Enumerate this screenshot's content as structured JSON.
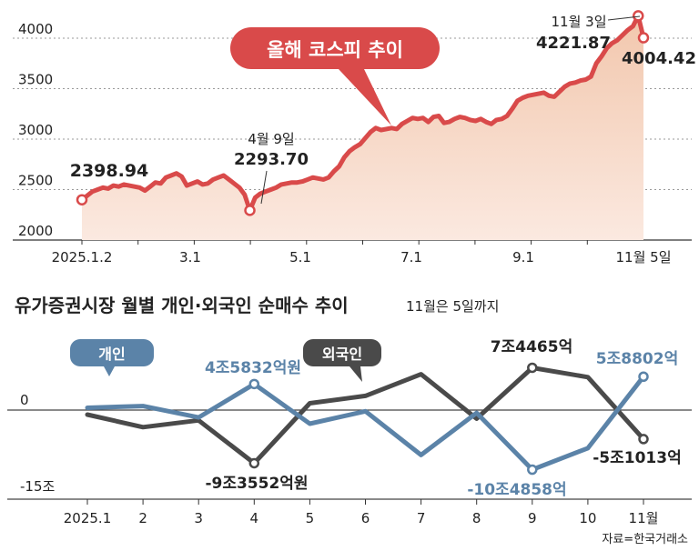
{
  "source": "자료=한국거래소",
  "colors": {
    "kospi_line": "#d94a4a",
    "kospi_fill_top": "#f2c7ad",
    "kospi_fill_bottom": "#fbe9e0",
    "individual": "#5b83a8",
    "foreign": "#4a4a4a",
    "grid": "#9a9a9a",
    "text": "#222222"
  },
  "chart_data": [
    {
      "type": "area",
      "title": "올해 코스피 추이",
      "ylim": [
        2000,
        4300
      ],
      "y_ticks": [
        "4000",
        "3500",
        "3000",
        "2500",
        "2000"
      ],
      "x_tick_labels": [
        "2025.1.2",
        "3.1",
        "5.1",
        "7.1",
        "9.1",
        "11월 5일"
      ],
      "series": [
        {
          "name": "코스피",
          "values": [
            2399,
            2440,
            2480,
            2500,
            2520,
            2510,
            2540,
            2530,
            2550,
            2540,
            2530,
            2520,
            2490,
            2530,
            2570,
            2560,
            2620,
            2640,
            2660,
            2630,
            2540,
            2560,
            2580,
            2550,
            2560,
            2600,
            2620,
            2640,
            2600,
            2560,
            2520,
            2450,
            2294,
            2420,
            2460,
            2480,
            2500,
            2520,
            2550,
            2560,
            2570,
            2570,
            2580,
            2600,
            2620,
            2610,
            2600,
            2620,
            2680,
            2730,
            2820,
            2880,
            2920,
            2950,
            3010,
            3070,
            3110,
            3090,
            3100,
            3110,
            3100,
            3150,
            3180,
            3210,
            3200,
            3210,
            3170,
            3220,
            3230,
            3160,
            3170,
            3200,
            3220,
            3210,
            3190,
            3180,
            3200,
            3170,
            3150,
            3190,
            3200,
            3230,
            3300,
            3380,
            3410,
            3430,
            3440,
            3450,
            3460,
            3430,
            3420,
            3470,
            3520,
            3550,
            3560,
            3580,
            3590,
            3620,
            3750,
            3820,
            3900,
            3950,
            3980,
            4030,
            4080,
            4120,
            4222,
            4004
          ]
        }
      ],
      "annotations": [
        {
          "label": "",
          "value": "2398.94"
        },
        {
          "label": "4월 9일",
          "value": "2293.70"
        },
        {
          "label": "11월 3일",
          "value": "4221.87"
        },
        {
          "label": "",
          "value": "4004.42"
        }
      ]
    },
    {
      "type": "line",
      "title": "유가증권시장 월별 개인·외국인 순매수 추이",
      "subtitle": "11월은 5일까지",
      "y_ticks": [
        "0",
        "-15조"
      ],
      "categories": [
        "2025.1",
        "2",
        "3",
        "4",
        "5",
        "6",
        "7",
        "8",
        "9",
        "10",
        "11월"
      ],
      "series": [
        {
          "name": "개인",
          "unit": "조원",
          "values": [
            0.4,
            0.7,
            -1.3,
            4.5832,
            -2.4,
            -0.2,
            -7.9,
            -0.5,
            -10.4858,
            -6.7,
            5.8802
          ]
        },
        {
          "name": "외국인",
          "unit": "조원",
          "values": [
            -0.8,
            -3.0,
            -1.8,
            -9.3552,
            1.2,
            2.5,
            6.3,
            -1.5,
            7.4465,
            5.8,
            -5.1013
          ]
        }
      ],
      "annotations": [
        "4조5832억원",
        "-9조3552억원",
        "7조4465억",
        "-10조4858억",
        "5조8802억",
        "-5조1013억"
      ]
    }
  ]
}
